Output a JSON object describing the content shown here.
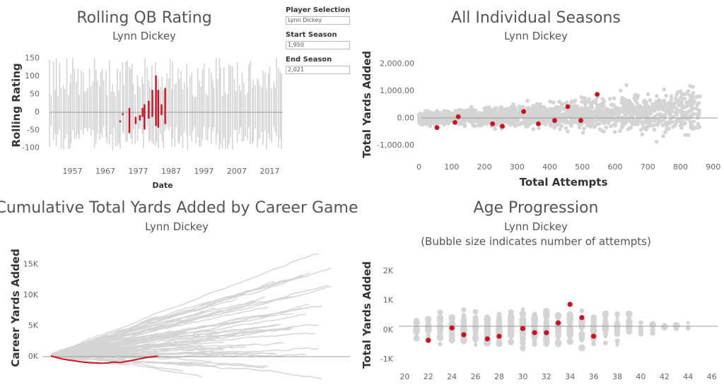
{
  "parameters": {
    "player_selection": {
      "label": "Player Selection",
      "value": "Lynn Dickey"
    },
    "start_season": {
      "label": "Start Season",
      "value": "1,950"
    },
    "end_season": {
      "label": "End Season",
      "value": "2,021"
    }
  },
  "colors": {
    "highlight": "#cc1122",
    "background_marks": "#d4d4d4",
    "zero_line": "#999999"
  },
  "chart_data": [
    {
      "type": "line",
      "title": "Rolling QB Rating",
      "subtitle": "Lynn Dickey",
      "xlabel": "Date",
      "ylabel": "Rolling Rating",
      "x_ticks": [
        "1957",
        "1967",
        "1977",
        "1987",
        "1997",
        "2007",
        "2017"
      ],
      "y_ticks": [
        "150",
        "100",
        "50",
        "0",
        "-50",
        "-100"
      ],
      "xlim": [
        1950,
        2021
      ],
      "ylim": [
        -130,
        165
      ],
      "highlight_series": {
        "name": "Lynn Dickey",
        "x": [
          1971.5,
          1972.3,
          1974.3,
          1976.2,
          1977.5,
          1978.3,
          1978.9,
          1980.2,
          1981.3,
          1982.4,
          1983.1,
          1984.1,
          1985.2
        ],
        "low": [
          -30,
          -10,
          -60,
          -35,
          -25,
          -15,
          -50,
          -20,
          -15,
          -40,
          -45,
          -10,
          -35
        ],
        "high": [
          -25,
          -5,
          10,
          -15,
          -10,
          10,
          20,
          30,
          60,
          100,
          60,
          20,
          65
        ]
      },
      "background_series_note": "",
      "grid": false
    },
    {
      "type": "scatter",
      "title": "All Individual Seasons",
      "subtitle": "Lynn Dickey",
      "xlabel": "Total Attempts",
      "ylabel": "Total Yards Added",
      "x_ticks": [
        "0",
        "100",
        "200",
        "300",
        "400",
        "500",
        "600",
        "700",
        "800",
        "900"
      ],
      "y_ticks": [
        "2,000.00",
        "1,000.00",
        "0.00",
        "-1,000.00"
      ],
      "xlim": [
        -10,
        920
      ],
      "ylim": [
        -1700,
        2500
      ],
      "highlight_points": [
        {
          "x": 55,
          "y": -370
        },
        {
          "x": 110,
          "y": -180
        },
        {
          "x": 120,
          "y": 30
        },
        {
          "x": 225,
          "y": -230
        },
        {
          "x": 255,
          "y": -320
        },
        {
          "x": 320,
          "y": 220
        },
        {
          "x": 365,
          "y": -230
        },
        {
          "x": 415,
          "y": -110
        },
        {
          "x": 455,
          "y": 400
        },
        {
          "x": 495,
          "y": -110
        },
        {
          "x": 545,
          "y": 850
        }
      ],
      "grid": false
    },
    {
      "type": "line",
      "title": "Cumulative Total Yards Added by Career Game",
      "subtitle": "Lynn Dickey",
      "xlabel": "",
      "ylabel": "Career Yards Added",
      "y_ticks": [
        "15K",
        "10K",
        "5K",
        "0K"
      ],
      "xlim": [
        0,
        380
      ],
      "ylim": [
        -4500,
        17500
      ],
      "highlight_series": {
        "name": "Lynn Dickey",
        "x": [
          0,
          8,
          16,
          24,
          32,
          40,
          48,
          56,
          64,
          72,
          80,
          88,
          96,
          104,
          112,
          120,
          128,
          136
        ],
        "y": [
          0,
          -300,
          -550,
          -700,
          -850,
          -1000,
          -1100,
          -1150,
          -1200,
          -1150,
          -1000,
          -1100,
          -900,
          -700,
          -500,
          -300,
          -150,
          -50
        ]
      },
      "grid": false
    },
    {
      "type": "scatter",
      "title": "Age Progression",
      "subtitle": "Lynn Dickey",
      "subtitle2": "(Bubble size indicates number of attempts)",
      "xlabel": "",
      "ylabel": "Total Yards Added",
      "x_ticks": [
        "20",
        "22",
        "24",
        "26",
        "28",
        "30",
        "32",
        "34",
        "36",
        "38",
        "40",
        "42",
        "44",
        "46"
      ],
      "y_ticks": [
        "2K",
        "1K",
        "0K",
        "-1K"
      ],
      "xlim": [
        19.5,
        46.5
      ],
      "ylim": [
        -1450,
        2550
      ],
      "highlight_points": [
        {
          "x": 22,
          "y": -370
        },
        {
          "x": 24,
          "y": 50
        },
        {
          "x": 25,
          "y": -180
        },
        {
          "x": 27,
          "y": -320
        },
        {
          "x": 28,
          "y": -230
        },
        {
          "x": 30,
          "y": 30
        },
        {
          "x": 31,
          "y": -110
        },
        {
          "x": 32,
          "y": -110
        },
        {
          "x": 33,
          "y": 220
        },
        {
          "x": 34,
          "y": 850
        },
        {
          "x": 35,
          "y": 400
        },
        {
          "x": 36,
          "y": -230
        }
      ],
      "grid": false
    }
  ]
}
